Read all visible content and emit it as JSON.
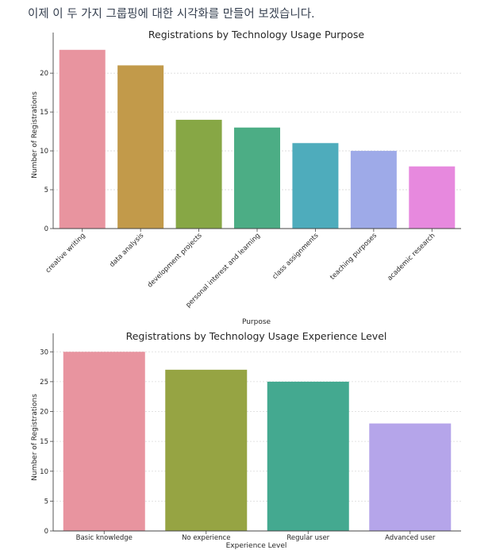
{
  "intro_text": "이제 이 두 가지 그룹핑에 대한 시각화를 만들어 보겠습니다.",
  "chart_data": [
    {
      "type": "bar",
      "title": "Registrations by Technology Usage Purpose",
      "xlabel": "Purpose",
      "ylabel": "Number of Registrations",
      "categories": [
        "creative writing",
        "data analysis",
        "development projects",
        "personal interest and learning",
        "class assignments",
        "teaching purposes",
        "academic research"
      ],
      "values": [
        23,
        21,
        14,
        13,
        11,
        10,
        8
      ],
      "colors": [
        "#e8949f",
        "#c29a4a",
        "#87a745",
        "#4cad85",
        "#4eacbc",
        "#9eaae8",
        "#e789de"
      ],
      "ylim": [
        0,
        24
      ],
      "yticks": [
        0,
        5,
        10,
        15,
        20
      ],
      "grid": true
    },
    {
      "type": "bar",
      "title": "Registrations by Technology Usage Experience Level",
      "xlabel": "Experience Level",
      "ylabel": "Number of Registrations",
      "categories": [
        "Basic knowledge",
        "No experience",
        "Regular user",
        "Advanced user"
      ],
      "values": [
        30,
        27,
        25,
        18
      ],
      "colors": [
        "#e8949f",
        "#96a443",
        "#44a990",
        "#b5a5ea"
      ],
      "ylim": [
        0,
        31.5
      ],
      "yticks": [
        0,
        5,
        10,
        15,
        20,
        25,
        30
      ],
      "grid": true
    }
  ]
}
